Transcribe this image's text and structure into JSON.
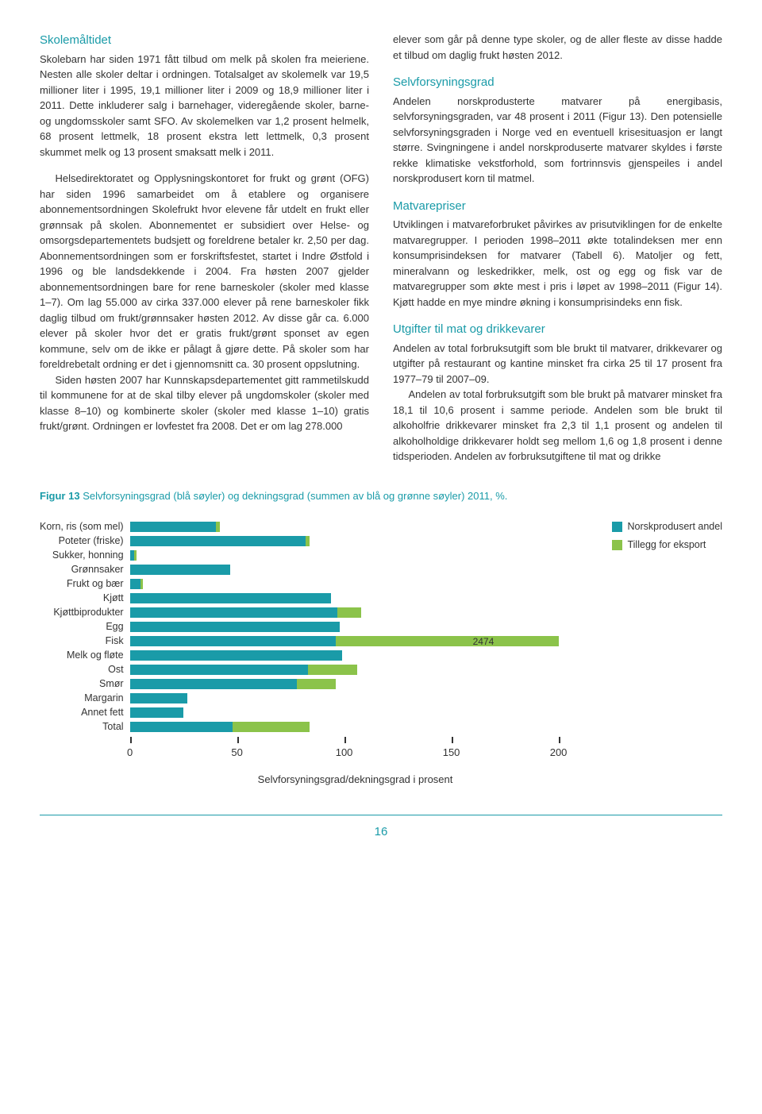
{
  "left": {
    "h1": "Skolemåltidet",
    "p1": "Skolebarn har siden 1971 fått tilbud om melk på skolen fra meieriene. Nesten alle skoler deltar i ordningen. Totalsalget av skolemelk var 19,5 millioner liter i 1995, 19,1 millioner liter i 2009 og 18,9 millioner liter i 2011. Dette inkluderer salg i barnehager, videregående skoler, barne- og ungdomsskoler samt SFO. Av skolemelken var 1,2 prosent helmelk, 68 prosent lettmelk, 18 prosent ekstra lett lettmelk, 0,3 prosent skummet melk og 13 prosent smaksatt melk i 2011.",
    "p2": "Helsedirektoratet og Opplysningskontoret for frukt og grønt (OFG) har siden 1996 samarbeidet om å etablere og organisere abonnementsordningen Skolefrukt hvor elevene får utdelt en frukt eller grønnsak på skolen. Abonnementet er subsidiert over Helse- og omsorgsdepartementets budsjett og foreldrene betaler kr. 2,50 per dag. Abonnementsordningen som er forskriftsfestet, startet i Indre Østfold i 1996 og ble landsdekkende i 2004. Fra høsten 2007 gjelder abonnementsordningen bare for rene barneskoler (skoler med klasse 1–7). Om lag 55.000 av cirka 337.000 elever på rene barneskoler fikk daglig tilbud om frukt/grønnsaker høsten 2012. Av disse går ca. 6.000 elever på skoler hvor det er gratis frukt/grønt sponset av egen kommune, selv om de ikke er pålagt å gjøre dette. På skoler som har foreldrebetalt ordning er det i gjennomsnitt ca. 30 prosent oppslutning.",
    "p3": "Siden høsten 2007 har Kunnskapsdepartementet gitt rammetilskudd til kommunene for at de skal tilby elever på ungdomskoler (skoler med klasse 8–10) og kombinerte skoler (skoler med klasse 1–10) gratis frukt/grønt. Ordningen er lovfestet fra 2008. Det er om lag 278.000"
  },
  "right": {
    "p0": "elever som går på denne type skoler, og de aller fleste av disse hadde et tilbud om daglig frukt høsten 2012.",
    "h2": "Selvforsyningsgrad",
    "p1": "Andelen norskprodusterte matvarer på energibasis, selvforsyningsgraden, var 48 prosent i 2011 (Figur 13). Den potensielle selvforsyningsgraden i Norge ved en eventuell krisesituasjon er langt større. Svingningene i andel norskproduserte matvarer skyldes i første rekke klimatiske vekstforhold, som fortrinnsvis gjenspeiles i andel norskprodusert korn til matmel.",
    "h3": "Matvarepriser",
    "p2": "Utviklingen i matvareforbruket påvirkes av prisutviklingen for de enkelte matvaregrupper. I perioden 1998–2011 økte totalindeksen mer enn konsumprisindeksen for matvarer (Tabell 6). Matoljer og fett, mineralvann og leskedrikker, melk, ost og egg og fisk var de matvaregrupper som økte mest i pris i løpet av 1998–2011 (Figur 14). Kjøtt hadde en mye mindre økning i konsumprisindeks enn fisk.",
    "h4": "Utgifter til mat og drikkevarer",
    "p3": "Andelen av total forbruksutgift som ble brukt til matvarer, drikkevarer og utgifter på restaurant og kantine minsket fra cirka 25 til 17 prosent fra 1977–79 til 2007–09.",
    "p4": "Andelen av total forbruksutgift som ble brukt på matvarer minsket fra 18,1 til 10,6 prosent i samme periode. Andelen som ble brukt til alkoholfrie drikkevarer minsket fra 2,3 til 1,1 prosent og andelen til alkoholholdige drikkevarer holdt seg mellom 1,6 og 1,8 prosent i denne tidsperioden. Andelen av forbruksutgiftene til mat og drikke"
  },
  "figure": {
    "caption_label": "Figur 13",
    "caption_rest": "  Selvforsyningsgrad (blå søyler) og dekningsgrad (summen av blå og grønne søyler) 2011, %.",
    "x_axis_label": "Selvforsyningsgrad/dekningsgrad i prosent",
    "xmax": 200,
    "ticks": [
      0,
      50,
      100,
      150,
      200
    ],
    "colors": {
      "blue": "#1a9ba8",
      "green": "#8bc34a"
    },
    "legend": [
      {
        "label": "Norskprodusert andel",
        "color": "#1a9ba8"
      },
      {
        "label": "Tillegg for eksport",
        "color": "#8bc34a"
      }
    ],
    "annotation": {
      "text": "2474",
      "row_index": 8
    },
    "categories": [
      {
        "label": "Korn, ris (som mel)",
        "blue": 40,
        "green": 2
      },
      {
        "label": "Poteter (friske)",
        "blue": 82,
        "green": 2
      },
      {
        "label": "Sukker, honning",
        "blue": 2,
        "green": 1
      },
      {
        "label": "Grønnsaker",
        "blue": 47,
        "green": 0
      },
      {
        "label": "Frukt og bær",
        "blue": 5,
        "green": 1
      },
      {
        "label": "Kjøtt",
        "blue": 94,
        "green": 0
      },
      {
        "label": "Kjøttbiprodukter",
        "blue": 97,
        "green": 11
      },
      {
        "label": "Egg",
        "blue": 98,
        "green": 0
      },
      {
        "label": "Fisk",
        "blue": 96,
        "green": 104
      },
      {
        "label": "Melk og fløte",
        "blue": 99,
        "green": 0
      },
      {
        "label": "Ost",
        "blue": 83,
        "green": 23
      },
      {
        "label": "Smør",
        "blue": 78,
        "green": 18
      },
      {
        "label": "Margarin",
        "blue": 27,
        "green": 0
      },
      {
        "label": "Annet fett",
        "blue": 25,
        "green": 0
      },
      {
        "label": "Total",
        "blue": 48,
        "green": 36
      }
    ]
  },
  "page_number": "16"
}
